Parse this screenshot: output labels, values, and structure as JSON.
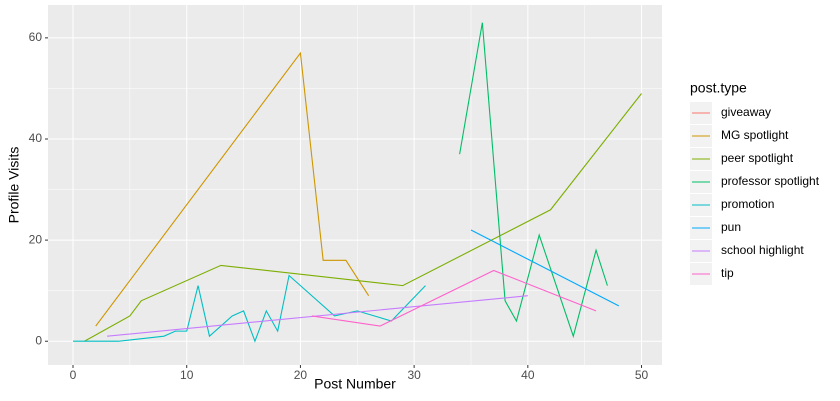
{
  "chart_data": {
    "type": "line",
    "x_label": "Post Number",
    "y_label": "Profile Visits",
    "legend_title": "post.type",
    "legend_position": "right",
    "grid": true,
    "xlim": [
      -2.2,
      51.8
    ],
    "xticks": [
      0,
      10,
      20,
      30,
      40,
      50
    ],
    "ylim": [
      -4.7,
      66.5
    ],
    "yticks": [
      0,
      20,
      40,
      60
    ],
    "series": [
      {
        "name": "giveaway",
        "color": "#F8766D",
        "x": [],
        "values": []
      },
      {
        "name": "MG spotlight",
        "color": "#CD9600",
        "x": [
          2,
          20,
          22,
          24,
          26
        ],
        "values": [
          3,
          57,
          16,
          16,
          9
        ]
      },
      {
        "name": "peer spotlight",
        "color": "#7CAE00",
        "x": [
          1,
          5,
          6,
          13,
          29,
          42,
          50
        ],
        "values": [
          0,
          5,
          8,
          15,
          11,
          26,
          49
        ]
      },
      {
        "name": "professor spotlight",
        "color": "#00BE67",
        "x": [
          34,
          36,
          38,
          39,
          41,
          44,
          46,
          47
        ],
        "values": [
          37,
          63,
          8,
          4,
          21,
          1,
          18,
          11
        ]
      },
      {
        "name": "promotion",
        "color": "#00BFC4",
        "x": [
          0,
          4,
          8,
          9,
          10,
          11,
          12,
          14,
          15,
          16,
          17,
          18,
          19,
          23,
          25,
          28,
          31
        ],
        "values": [
          0,
          0,
          1,
          2,
          2,
          11,
          1,
          5,
          6,
          0,
          6,
          2,
          13,
          5,
          6,
          4,
          11
        ]
      },
      {
        "name": "pun",
        "color": "#00A9FF",
        "x": [
          35,
          48
        ],
        "values": [
          22,
          7
        ]
      },
      {
        "name": "school highlight",
        "color": "#C77CFF",
        "x": [
          3,
          40
        ],
        "values": [
          1,
          9
        ]
      },
      {
        "name": "tip",
        "color": "#FF61CC",
        "x": [
          21,
          27,
          37,
          46
        ],
        "values": [
          5,
          3,
          14,
          6
        ]
      }
    ]
  }
}
